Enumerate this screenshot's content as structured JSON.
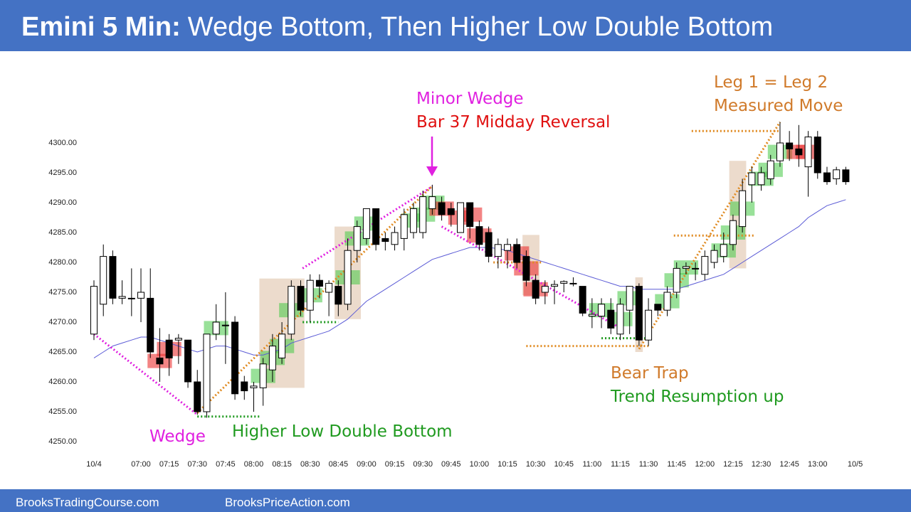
{
  "header": {
    "title_lead": "Emini 5 Min:",
    "title": "Wedge Bottom, Then Higher Low Double Bottom"
  },
  "footer": {
    "left": "BrooksTradingCourse.com",
    "right": "BrooksPriceAction.com"
  },
  "chart_data": {
    "type": "candlestick",
    "x": [
      1,
      2,
      3,
      4,
      5,
      6,
      7,
      8,
      9,
      10,
      11,
      12,
      13,
      14,
      15,
      16,
      17,
      18,
      19,
      20,
      21,
      22,
      23,
      24,
      25,
      26,
      27,
      28,
      29,
      30,
      31,
      32,
      33,
      34,
      35,
      36,
      37,
      38,
      39,
      40,
      41,
      42,
      43,
      44,
      45,
      46,
      47,
      48,
      49,
      50,
      51,
      52,
      53,
      54,
      55,
      56,
      57,
      58,
      59,
      60,
      61,
      62,
      63,
      64,
      65,
      66,
      67,
      68,
      69,
      70,
      71,
      72,
      73,
      74,
      75,
      76,
      77,
      78,
      79,
      80,
      81
    ],
    "open": [
      4268,
      4273,
      4281,
      4274,
      4274,
      4274,
      4274,
      4264,
      4267,
      4267,
      4267,
      4260,
      4255,
      4268,
      4269.5,
      4270,
      4260,
      4259,
      4259,
      4262,
      4264,
      4268,
      4276,
      4272,
      4277,
      4275,
      4276,
      4273,
      4282,
      4284,
      4289,
      4284,
      4283,
      4284,
      4285,
      4285,
      4289,
      4290,
      4289,
      4285,
      4290,
      4286,
      4285,
      4281,
      4282,
      4283,
      4281,
      4277,
      4275,
      4276,
      4276.5,
      4276.5,
      4276,
      4271,
      4271,
      4272,
      4268,
      4272,
      4276,
      4267,
      4273,
      4272,
      4275,
      4279,
      4279,
      4278,
      4280,
      4281,
      4283,
      4286,
      4293,
      4293,
      4294,
      4297,
      4300,
      4299,
      4296,
      4301,
      4295,
      4294,
      4295.5
    ],
    "high": [
      4277,
      4283,
      4282,
      4277,
      4279,
      4279,
      4279,
      4269,
      4268,
      4268,
      4267,
      4262,
      4268,
      4273,
      4275,
      4271,
      4261,
      4260,
      4264,
      4268,
      4270,
      4277,
      4277,
      4278,
      4278,
      4277,
      4277,
      4284,
      4287,
      4289,
      4289,
      4285,
      4286,
      4289,
      4290,
      4292,
      4293,
      4291,
      4290,
      4290,
      4290,
      4287,
      4286,
      4284,
      4284,
      4284,
      4282,
      4278,
      4277,
      4277,
      4277,
      4277.5,
      4276,
      4274,
      4274,
      4274,
      4274,
      4276,
      4276.5,
      4274,
      4273,
      4276,
      4280,
      4280,
      4280,
      4282,
      4283,
      4285,
      4288,
      4294,
      4296,
      4296,
      4298,
      4303.5,
      4302,
      4303,
      4302,
      4302,
      4296,
      4296,
      4296
    ],
    "low": [
      4267,
      4271,
      4273,
      4273,
      4271,
      4270,
      4264,
      4260,
      4261,
      4263,
      4259,
      4254.5,
      4254,
      4267,
      4263,
      4257,
      4257,
      4255,
      4256,
      4260,
      4263,
      4267,
      4271,
      4270,
      4274,
      4271,
      4271,
      4272,
      4280,
      4283,
      4282,
      4282,
      4282,
      4282,
      4284,
      4284,
      4288,
      4287,
      4286,
      4285,
      4284,
      4282,
      4280,
      4279,
      4279,
      4279,
      4276,
      4273,
      4273,
      4273,
      4275,
      4276,
      4271,
      4269,
      4269,
      4268,
      4267,
      4268,
      4266,
      4266,
      4271,
      4271,
      4274,
      4278,
      4277,
      4277,
      4279,
      4280,
      4282,
      4285,
      4290,
      4292,
      4293,
      4296,
      4297,
      4296,
      4291,
      4294,
      4293,
      4293,
      4293
    ],
    "close": [
      4276,
      4281,
      4274,
      4274.3,
      4274,
      4275,
      4265,
      4263,
      4264,
      4267.3,
      4260,
      4255,
      4268,
      4270,
      4269.5,
      4258,
      4258.5,
      4259.3,
      4263,
      4266,
      4268,
      4276,
      4272,
      4277,
      4276,
      4276.5,
      4273,
      4282,
      4286,
      4289,
      4283,
      4283.5,
      4285,
      4288,
      4289,
      4291,
      4291,
      4288,
      4288,
      4290,
      4286,
      4283,
      4281,
      4283,
      4283,
      4280,
      4277,
      4274,
      4276,
      4276.3,
      4276.8,
      4276.5,
      4271.5,
      4271.3,
      4273,
      4269,
      4273,
      4276,
      4267,
      4272,
      4272,
      4275,
      4279,
      4279.3,
      4279,
      4281,
      4282,
      4283,
      4287,
      4292,
      4295,
      4295,
      4297,
      4300,
      4299,
      4298,
      4301,
      4295,
      4293.5,
      4295.5,
      4293.5
    ],
    "ema": [
      4264,
      4265,
      4266,
      4266.5,
      4267,
      4267.5,
      4267.5,
      4267,
      4266.5,
      4266,
      4265.5,
      4265,
      4265.5,
      4266,
      4266,
      4265.5,
      4265,
      4264.5,
      4264.5,
      4265,
      4265.5,
      4266.5,
      4267,
      4267.5,
      4268,
      4268.5,
      4269.5,
      4270.5,
      4272,
      4273.5,
      4274.5,
      4275.5,
      4276.5,
      4277.5,
      4278.5,
      4279.5,
      4280.5,
      4281,
      4281.5,
      4282,
      4282.5,
      4282.5,
      4282.5,
      4282.3,
      4282,
      4281.5,
      4281,
      4280.5,
      4280,
      4279.5,
      4279,
      4278.5,
      4278,
      4277.5,
      4277,
      4276.5,
      4276,
      4276,
      4275.5,
      4275.5,
      4275.5,
      4275.5,
      4275.5,
      4276,
      4276.5,
      4277,
      4277.5,
      4278,
      4279,
      4280,
      4281,
      4282,
      4283,
      4284,
      4285,
      4286,
      4287.5,
      4288.5,
      4289.5,
      4290,
      4290.5
    ],
    "up_color": "#ffffff",
    "down_color": "#000000",
    "ema_color": "#5b5bd6",
    "xlim": [
      -0.5,
      84
    ],
    "xticks": [
      {
        "value": 1,
        "label": "10/4"
      },
      {
        "value": 6,
        "label": "07:00"
      },
      {
        "value": 9,
        "label": "07:15"
      },
      {
        "value": 12,
        "label": "07:30"
      },
      {
        "value": 15,
        "label": "07:45"
      },
      {
        "value": 18,
        "label": "08:00"
      },
      {
        "value": 21,
        "label": "08:15"
      },
      {
        "value": 24,
        "label": "08:30"
      },
      {
        "value": 27,
        "label": "08:45"
      },
      {
        "value": 30,
        "label": "09:00"
      },
      {
        "value": 33,
        "label": "09:15"
      },
      {
        "value": 36,
        "label": "09:30"
      },
      {
        "value": 39,
        "label": "09:45"
      },
      {
        "value": 42,
        "label": "10:00"
      },
      {
        "value": 45,
        "label": "10:15"
      },
      {
        "value": 48,
        "label": "10:30"
      },
      {
        "value": 51,
        "label": "10:45"
      },
      {
        "value": 54,
        "label": "11:00"
      },
      {
        "value": 57,
        "label": "11:15"
      },
      {
        "value": 60,
        "label": "11:30"
      },
      {
        "value": 63,
        "label": "11:45"
      },
      {
        "value": 66,
        "label": "12:00"
      },
      {
        "value": 69,
        "label": "12:15"
      },
      {
        "value": 72,
        "label": "12:30"
      },
      {
        "value": 75,
        "label": "12:45"
      },
      {
        "value": 78,
        "label": "13:00"
      },
      {
        "value": 82,
        "label": "10/5"
      }
    ],
    "ylim": [
      4248,
      4305
    ],
    "yticks": [
      {
        "value": 4250,
        "label": "4250.00"
      },
      {
        "value": 4255,
        "label": "4255.00"
      },
      {
        "value": 4260,
        "label": "4260.00"
      },
      {
        "value": 4265,
        "label": "4265.00"
      },
      {
        "value": 4270,
        "label": "4270.00"
      },
      {
        "value": 4275,
        "label": "4275.00"
      },
      {
        "value": 4280,
        "label": "4280.00"
      },
      {
        "value": 4285,
        "label": "4285.00"
      },
      {
        "value": 4290,
        "label": "4290.00"
      },
      {
        "value": 4295,
        "label": "4295.00"
      },
      {
        "value": 4300,
        "label": "4300.00"
      }
    ],
    "grid": false,
    "highlights": {
      "green": [
        14,
        19,
        20,
        21,
        22,
        24,
        28,
        29,
        30,
        35,
        36,
        37,
        55,
        57,
        58,
        62,
        63,
        64,
        68,
        69,
        70,
        72,
        73,
        74
      ],
      "red": [
        8,
        9,
        38,
        40,
        41,
        42,
        46,
        47,
        48,
        76,
        77
      ],
      "green_color": "rgba(70,200,70,0.55)",
      "red_color": "rgba(235,50,50,0.6)"
    },
    "zones": [
      {
        "x": [
          18.6,
          23.4
        ],
        "y": [
          4259,
          4277.3
        ]
      },
      {
        "x": [
          26.6,
          29.4
        ],
        "y": [
          4270.5,
          4286
        ]
      },
      {
        "x": [
          46.6,
          48.4
        ],
        "y": [
          4274.5,
          4284.6
        ]
      },
      {
        "x": [
          58.6,
          59.4
        ],
        "y": [
          4265,
          4277.5
        ]
      },
      {
        "x": [
          68.6,
          70.4
        ],
        "y": [
          4279,
          4297
        ]
      }
    ],
    "zone_color": "rgba(205,160,120,0.38)",
    "dotted_lines": [
      {
        "color": "#e020e0",
        "x": [
          1,
          12
        ],
        "y": [
          4268,
          4254.5
        ]
      },
      {
        "color": "#e020e0",
        "x": [
          23.2,
          37
        ],
        "y": [
          4279,
          4292.7
        ]
      },
      {
        "color": "#e020e0",
        "x": [
          38,
          57
        ],
        "y": [
          4286,
          4269
        ]
      },
      {
        "color": "#e08a20",
        "x": [
          12,
          37
        ],
        "y": [
          4254.8,
          4292.8
        ]
      },
      {
        "color": "#e08a20",
        "x": [
          59,
          74
        ],
        "y": [
          4265.5,
          4303.5
        ]
      },
      {
        "color": "#e08a20",
        "x": [
          64.6,
          74
        ],
        "y": [
          4302,
          4302
        ]
      },
      {
        "color": "#e08a20",
        "x": [
          62.7,
          71.3
        ],
        "y": [
          4284.5,
          4284.5
        ]
      },
      {
        "color": "#e08a20",
        "x": [
          47,
          60
        ],
        "y": [
          4266,
          4266
        ]
      },
      {
        "color": "#e08a20",
        "x": [
          43.5,
          48.8
        ],
        "y": [
          4280,
          4280
        ]
      },
      {
        "color": "#1f9a1f",
        "x": [
          12,
          18.7
        ],
        "y": [
          4254.2,
          4254.2
        ]
      },
      {
        "color": "#1f9a1f",
        "x": [
          23.2,
          27
        ],
        "y": [
          4270,
          4270
        ]
      },
      {
        "color": "#1f9a1f",
        "x": [
          55,
          60
        ],
        "y": [
          4267.3,
          4267.3
        ]
      }
    ],
    "annotations": {
      "minor_wedge": "Minor Wedge",
      "midday_reversal": "Bar 37 Midday Reversal",
      "leg": "Leg 1 = Leg 2",
      "measured_move": "Measured Move",
      "wedge": "Wedge",
      "double_bottom": "Higher Low Double Bottom",
      "bear_trap": "Bear Trap",
      "trend_resumption": "Trend Resumption up"
    }
  }
}
